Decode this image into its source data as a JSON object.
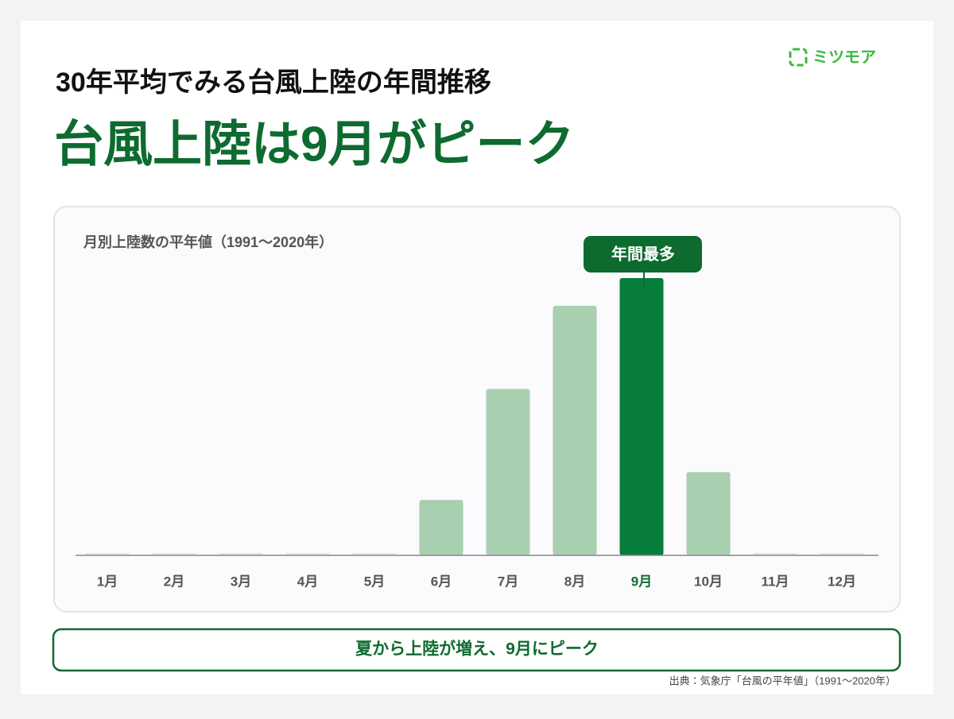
{
  "header": {
    "logo": "ミツモア",
    "title": "30年平均でみる台風上陸の年間推移",
    "headline": "台風上陸は9月がピーク"
  },
  "chart_data": {
    "type": "bar",
    "title": "月別上陸数の平年値（1991〜2020年）",
    "categories": [
      "1月",
      "2月",
      "3月",
      "4月",
      "5月",
      "6月",
      "7月",
      "8月",
      "9月",
      "10月",
      "11月",
      "12月"
    ],
    "values": [
      0,
      0,
      0,
      0,
      0,
      0.2,
      0.6,
      0.9,
      1.0,
      0.3,
      0,
      0
    ],
    "color": "#a9cfb1",
    "highlight_color": "#067d3c",
    "annotation": "年間最多"
  },
  "footer": {
    "summary": "夏から上陸が増え、9月にピーク",
    "source": "出典：気象庁「台風の平年値」（1991〜2020年）"
  }
}
